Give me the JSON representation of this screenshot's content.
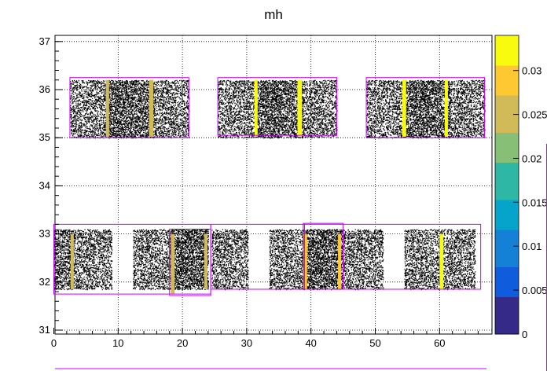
{
  "chart_data": {
    "type": "scatter",
    "title": "mh",
    "xlabel": "",
    "ylabel": "",
    "xlim": [
      0,
      67
    ],
    "ylim": [
      31,
      37
    ],
    "x_ticks": [
      0,
      10,
      20,
      30,
      40,
      50,
      60
    ],
    "y_ticks": [
      31,
      32,
      33,
      34,
      35,
      36,
      37
    ],
    "grid": true,
    "colorbar": {
      "range": [
        0,
        0.034
      ],
      "ticks": [
        {
          "value": 0,
          "label": "0"
        },
        {
          "value": 0.005,
          "label": "0.005"
        },
        {
          "value": 0.01,
          "label": "0.01"
        },
        {
          "value": 0.015,
          "label": "0.015"
        },
        {
          "value": 0.02,
          "label": "0.02"
        },
        {
          "value": 0.025,
          "label": "0.025"
        },
        {
          "value": 0.03,
          "label": "0.03"
        }
      ],
      "colors": [
        "#352a87",
        "#0f5cdd",
        "#1481d6",
        "#06a4ca",
        "#2eb7a4",
        "#87bf77",
        "#d1bb59",
        "#fec832",
        "#f9fb0e"
      ]
    },
    "scatter_regions": [
      {
        "x": [
          2.5,
          8.3
        ],
        "y": [
          35.0,
          36.2
        ],
        "density": 0.45
      },
      {
        "x": [
          8.3,
          15.6
        ],
        "y": [
          35.0,
          36.2
        ],
        "density": 0.7
      },
      {
        "x": [
          15.6,
          21.0
        ],
        "y": [
          35.0,
          36.2
        ],
        "density": 0.45
      },
      {
        "x": [
          25.5,
          31.3
        ],
        "y": [
          35.0,
          36.2
        ],
        "density": 0.45
      },
      {
        "x": [
          31.3,
          38.7
        ],
        "y": [
          35.0,
          36.2
        ],
        "density": 0.7
      },
      {
        "x": [
          38.7,
          44.0
        ],
        "y": [
          35.0,
          36.2
        ],
        "density": 0.45
      },
      {
        "x": [
          48.6,
          54.5
        ],
        "y": [
          35.0,
          36.2
        ],
        "density": 0.45
      },
      {
        "x": [
          54.5,
          61.6
        ],
        "y": [
          35.0,
          36.2
        ],
        "density": 0.7
      },
      {
        "x": [
          61.6,
          67.0
        ],
        "y": [
          35.0,
          36.2
        ],
        "density": 0.45
      },
      {
        "x": [
          0.0,
          3.0
        ],
        "y": [
          31.85,
          33.1
        ],
        "density": 0.6
      },
      {
        "x": [
          3.0,
          9.0
        ],
        "y": [
          31.85,
          33.1
        ],
        "density": 0.45
      },
      {
        "x": [
          12.3,
          18.0
        ],
        "y": [
          31.85,
          33.1
        ],
        "density": 0.45
      },
      {
        "x": [
          18.0,
          24.0
        ],
        "y": [
          31.85,
          33.1
        ],
        "density": 0.75
      },
      {
        "x": [
          24.5,
          30.2
        ],
        "y": [
          31.85,
          33.1
        ],
        "density": 0.45
      },
      {
        "x": [
          33.5,
          39.0
        ],
        "y": [
          31.85,
          33.1
        ],
        "density": 0.45
      },
      {
        "x": [
          39.0,
          45.0
        ],
        "y": [
          31.85,
          33.1
        ],
        "density": 0.75
      },
      {
        "x": [
          45.0,
          51.2
        ],
        "y": [
          31.85,
          33.1
        ],
        "density": 0.45
      },
      {
        "x": [
          54.5,
          60.0
        ],
        "y": [
          31.85,
          33.1
        ],
        "density": 0.45
      },
      {
        "x": [
          60.0,
          65.5
        ],
        "y": [
          31.85,
          33.1
        ],
        "density": 0.45
      }
    ],
    "boxes": [
      {
        "x0": 2.5,
        "x1": 21.0,
        "y0": 35.0,
        "y1": 36.25
      },
      {
        "x0": 25.5,
        "x1": 44.0,
        "y0": 35.05,
        "y1": 36.25
      },
      {
        "x0": 48.6,
        "x1": 67.0,
        "y0": 35.0,
        "y1": 36.25
      },
      {
        "x0": 0.0,
        "x1": 24.4,
        "y0": 31.75,
        "y1": 33.2
      },
      {
        "x0": 18.0,
        "x1": 24.4,
        "y0": 31.72,
        "y1": 33.1
      },
      {
        "x0": 24.4,
        "x1": 39.0,
        "y0": 31.85,
        "y1": 33.2
      },
      {
        "x0": 38.8,
        "x1": 45.0,
        "y0": 31.85,
        "y1": 33.22
      },
      {
        "x0": 38.8,
        "x1": 66.4,
        "y0": 31.85,
        "y1": 33.2
      }
    ],
    "highlights": [
      {
        "x0": 8.1,
        "x1": 8.6,
        "y0": 35.02,
        "y1": 36.2,
        "value": 0.026
      },
      {
        "x0": 14.8,
        "x1": 15.5,
        "y0": 35.02,
        "y1": 36.2,
        "value": 0.026
      },
      {
        "x0": 31.2,
        "x1": 31.7,
        "y0": 35.02,
        "y1": 36.2,
        "value": 0.033
      },
      {
        "x0": 37.9,
        "x1": 38.6,
        "y0": 35.02,
        "y1": 36.2,
        "value": 0.033
      },
      {
        "x0": 54.2,
        "x1": 54.8,
        "y0": 35.02,
        "y1": 36.2,
        "value": 0.033
      },
      {
        "x0": 60.8,
        "x1": 61.3,
        "y0": 35.02,
        "y1": 36.2,
        "value": 0.033
      },
      {
        "x0": 2.6,
        "x1": 3.1,
        "y0": 31.85,
        "y1": 33.0,
        "value": 0.026
      },
      {
        "x0": 18.2,
        "x1": 18.8,
        "y0": 31.75,
        "y1": 33.0,
        "value": 0.026
      },
      {
        "x0": 23.4,
        "x1": 23.9,
        "y0": 31.85,
        "y1": 33.0,
        "value": 0.026
      },
      {
        "x0": 38.9,
        "x1": 39.4,
        "y0": 31.85,
        "y1": 33.0,
        "value": 0.03
      },
      {
        "x0": 44.2,
        "x1": 44.7,
        "y0": 31.85,
        "y1": 33.0,
        "value": 0.03
      },
      {
        "x0": 60.0,
        "x1": 60.6,
        "y0": 31.85,
        "y1": 33.0,
        "value": 0.033
      }
    ]
  }
}
